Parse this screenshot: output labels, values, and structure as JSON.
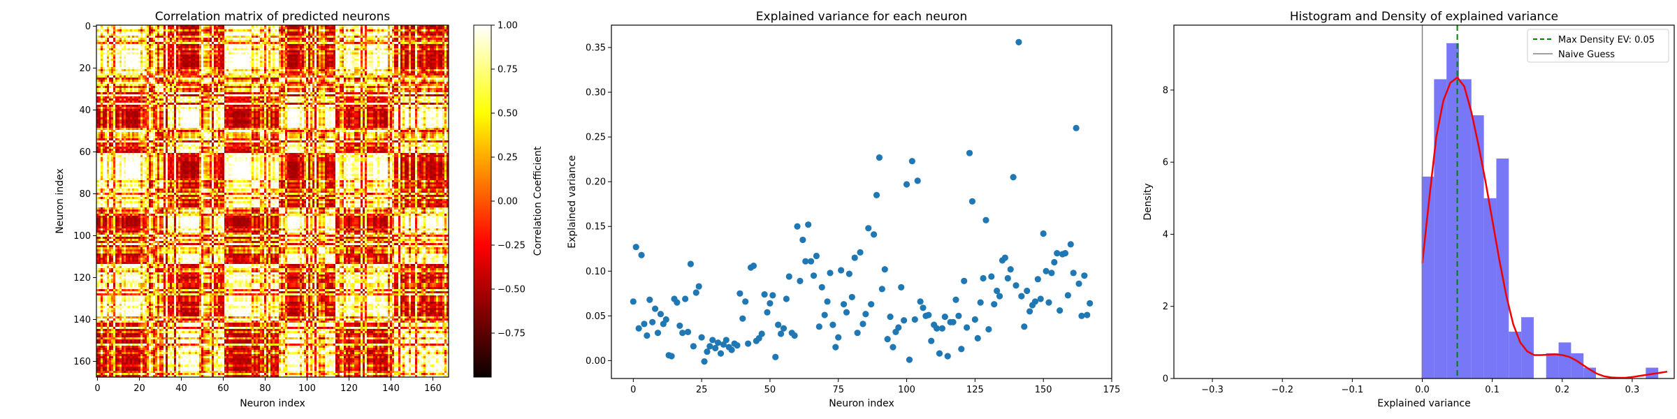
{
  "chart_data": [
    {
      "type": "heatmap",
      "title": "Correlation matrix of predicted neurons",
      "xlabel": "Neuron index",
      "ylabel": "Neuron index",
      "size": 168,
      "xticks": [
        0,
        20,
        40,
        60,
        80,
        100,
        120,
        140,
        160
      ],
      "yticks": [
        0,
        20,
        40,
        60,
        80,
        100,
        120,
        140,
        160
      ],
      "colormap": "hot",
      "colorbar": {
        "label": "Correlation Coefficient",
        "min": -1.0,
        "max": 1.0,
        "ticks": [
          1.0,
          0.75,
          0.5,
          0.25,
          0.0,
          -0.25,
          -0.5,
          -0.75
        ],
        "tick_labels": [
          "1.00",
          "0.75",
          "0.50",
          "0.25",
          "0.00",
          "−0.25",
          "−0.50",
          "−0.75"
        ]
      }
    },
    {
      "type": "scatter",
      "title": "Explained variance for each neuron",
      "xlabel": "Neuron index",
      "ylabel": "Explained variance",
      "xlim": [
        -8,
        175
      ],
      "ylim": [
        -0.02,
        0.375
      ],
      "xticks": [
        0,
        25,
        50,
        75,
        100,
        125,
        150,
        175
      ],
      "yticks": [
        0.0,
        0.05,
        0.1,
        0.15,
        0.2,
        0.25,
        0.3,
        0.35
      ],
      "ytick_labels": [
        "0.00",
        "0.05",
        "0.10",
        "0.15",
        "0.20",
        "0.25",
        "0.30",
        "0.35"
      ],
      "color": "#1f77b4",
      "points": [
        [
          0,
          0.066
        ],
        [
          1,
          0.127
        ],
        [
          2,
          0.036
        ],
        [
          3,
          0.118
        ],
        [
          4,
          0.041
        ],
        [
          5,
          0.028
        ],
        [
          6,
          0.068
        ],
        [
          7,
          0.043
        ],
        [
          8,
          0.058
        ],
        [
          9,
          0.031
        ],
        [
          10,
          0.052
        ],
        [
          11,
          0.041
        ],
        [
          12,
          0.046
        ],
        [
          13,
          0.006
        ],
        [
          14,
          0.005
        ],
        [
          15,
          0.069
        ],
        [
          16,
          0.065
        ],
        [
          17,
          0.039
        ],
        [
          18,
          0.031
        ],
        [
          19,
          0.069
        ],
        [
          20,
          0.032
        ],
        [
          21,
          0.108
        ],
        [
          22,
          0.016
        ],
        [
          23,
          0.076
        ],
        [
          24,
          0.083
        ],
        [
          25,
          0.026
        ],
        [
          26,
          -0.001
        ],
        [
          27,
          0.01
        ],
        [
          28,
          0.016
        ],
        [
          29,
          0.023
        ],
        [
          30,
          0.014
        ],
        [
          31,
          0.02
        ],
        [
          32,
          0.008
        ],
        [
          33,
          0.018
        ],
        [
          34,
          0.023
        ],
        [
          35,
          0.015
        ],
        [
          36,
          0.012
        ],
        [
          37,
          0.019
        ],
        [
          38,
          0.017
        ],
        [
          39,
          0.075
        ],
        [
          40,
          0.047
        ],
        [
          41,
          0.066
        ],
        [
          42,
          0.019
        ],
        [
          43,
          0.104
        ],
        [
          44,
          0.106
        ],
        [
          45,
          0.022
        ],
        [
          46,
          0.025
        ],
        [
          47,
          0.03
        ],
        [
          48,
          0.074
        ],
        [
          49,
          0.054
        ],
        [
          50,
          0.064
        ],
        [
          51,
          0.073
        ],
        [
          52,
          0.004
        ],
        [
          53,
          0.04
        ],
        [
          54,
          0.03
        ],
        [
          55,
          0.036
        ],
        [
          56,
          0.069
        ],
        [
          57,
          0.094
        ],
        [
          58,
          0.031
        ],
        [
          59,
          0.028
        ],
        [
          60,
          0.15
        ],
        [
          61,
          0.089
        ],
        [
          62,
          0.135
        ],
        [
          63,
          0.111
        ],
        [
          64,
          0.152
        ],
        [
          65,
          0.111
        ],
        [
          66,
          0.095
        ],
        [
          67,
          0.117
        ],
        [
          68,
          0.038
        ],
        [
          69,
          0.082
        ],
        [
          70,
          0.051
        ],
        [
          71,
          0.066
        ],
        [
          72,
          0.098
        ],
        [
          73,
          0.04
        ],
        [
          74,
          0.015
        ],
        [
          75,
          0.026
        ],
        [
          76,
          0.101
        ],
        [
          77,
          0.063
        ],
        [
          78,
          0.054
        ],
        [
          79,
          0.097
        ],
        [
          80,
          0.071
        ],
        [
          81,
          0.115
        ],
        [
          82,
          0.031
        ],
        [
          83,
          0.121
        ],
        [
          84,
          0.041
        ],
        [
          85,
          0.052
        ],
        [
          86,
          0.148
        ],
        [
          87,
          0.063
        ],
        [
          88,
          0.141
        ],
        [
          89,
          0.185
        ],
        [
          90,
          0.227
        ],
        [
          91,
          0.08
        ],
        [
          92,
          0.102
        ],
        [
          93,
          0.024
        ],
        [
          94,
          0.049
        ],
        [
          95,
          0.015
        ],
        [
          96,
          0.032
        ],
        [
          97,
          0.037
        ],
        [
          98,
          0.082
        ],
        [
          99,
          0.045
        ],
        [
          100,
          0.197
        ],
        [
          101,
          0.001
        ],
        [
          102,
          0.223
        ],
        [
          103,
          0.046
        ],
        [
          104,
          0.201
        ],
        [
          105,
          0.066
        ],
        [
          106,
          0.059
        ],
        [
          107,
          0.05
        ],
        [
          108,
          0.051
        ],
        [
          109,
          0.022
        ],
        [
          110,
          0.04
        ],
        [
          111,
          0.036
        ],
        [
          112,
          0.008
        ],
        [
          113,
          0.036
        ],
        [
          114,
          0.049
        ],
        [
          115,
          0.005
        ],
        [
          116,
          0.043
        ],
        [
          117,
          0.043
        ],
        [
          118,
          0.068
        ],
        [
          119,
          0.05
        ],
        [
          120,
          0.013
        ],
        [
          121,
          0.089
        ],
        [
          122,
          0.037
        ],
        [
          123,
          0.232
        ],
        [
          124,
          0.178
        ],
        [
          125,
          0.046
        ],
        [
          126,
          0.025
        ],
        [
          127,
          0.065
        ],
        [
          128,
          0.092
        ],
        [
          129,
          0.157
        ],
        [
          130,
          0.035
        ],
        [
          131,
          0.094
        ],
        [
          132,
          0.063
        ],
        [
          133,
          0.078
        ],
        [
          134,
          0.072
        ],
        [
          135,
          0.112
        ],
        [
          136,
          0.115
        ],
        [
          137,
          0.092
        ],
        [
          138,
          0.102
        ],
        [
          139,
          0.205
        ],
        [
          140,
          0.084
        ],
        [
          141,
          0.356
        ],
        [
          142,
          0.072
        ],
        [
          143,
          0.038
        ],
        [
          144,
          0.078
        ],
        [
          145,
          0.055
        ],
        [
          146,
          0.062
        ],
        [
          147,
          0.066
        ],
        [
          148,
          0.091
        ],
        [
          149,
          0.069
        ],
        [
          150,
          0.142
        ],
        [
          151,
          0.1
        ],
        [
          152,
          0.065
        ],
        [
          153,
          0.098
        ],
        [
          154,
          0.11
        ],
        [
          155,
          0.12
        ],
        [
          156,
          0.056
        ],
        [
          157,
          0.119
        ],
        [
          158,
          0.12
        ],
        [
          159,
          0.073
        ],
        [
          160,
          0.13
        ],
        [
          161,
          0.098
        ],
        [
          162,
          0.26
        ],
        [
          163,
          0.086
        ],
        [
          164,
          0.05
        ],
        [
          165,
          0.095
        ],
        [
          166,
          0.051
        ],
        [
          167,
          0.064
        ]
      ]
    },
    {
      "type": "bar",
      "title": "Histogram and Density of explained variance",
      "xlabel": "Explained variance",
      "ylabel": "Density",
      "xlim": [
        -0.355,
        0.36
      ],
      "ylim": [
        0,
        9.8
      ],
      "xticks": [
        -0.3,
        -0.2,
        -0.1,
        0.0,
        0.1,
        0.2,
        0.3
      ],
      "xtick_labels": [
        "−0.3",
        "−0.2",
        "−0.1",
        "0.0",
        "0.1",
        "0.2",
        "0.3"
      ],
      "yticks": [
        0,
        2,
        4,
        6,
        8
      ],
      "bin_width": 0.0178,
      "bin_start": -0.001,
      "bin_values": [
        5.6,
        8.3,
        9.3,
        8.3,
        7.3,
        5.0,
        6.1,
        1.3,
        1.7,
        0.0,
        0.7,
        1.0,
        0.7,
        0.3,
        0.0,
        0.0,
        0.0,
        0.0,
        0.3
      ],
      "bar_color": "#7777f7",
      "density": {
        "color": "#ee0000",
        "x": [
          0.0,
          0.01,
          0.02,
          0.03,
          0.04,
          0.05,
          0.06,
          0.07,
          0.08,
          0.09,
          0.1,
          0.11,
          0.12,
          0.13,
          0.14,
          0.15,
          0.16,
          0.17,
          0.18,
          0.19,
          0.2,
          0.21,
          0.22,
          0.23,
          0.24,
          0.25,
          0.26,
          0.27,
          0.28,
          0.29,
          0.3,
          0.31,
          0.32,
          0.33,
          0.34,
          0.35
        ],
        "y": [
          3.2,
          5.0,
          6.7,
          7.7,
          8.2,
          8.35,
          8.1,
          7.4,
          6.5,
          5.5,
          4.4,
          3.3,
          2.3,
          1.5,
          1.0,
          0.75,
          0.65,
          0.65,
          0.66,
          0.67,
          0.65,
          0.6,
          0.5,
          0.37,
          0.24,
          0.13,
          0.06,
          0.03,
          0.02,
          0.02,
          0.04,
          0.07,
          0.1,
          0.13,
          0.16,
          0.19
        ]
      },
      "max_density_line": {
        "x": 0.05,
        "label": "Max Density EV: 0.05",
        "color": "#008000"
      },
      "naive_line": {
        "x": 0.0,
        "label": "Naive Guess",
        "color": "#808080"
      },
      "legend_placement": "top-right"
    }
  ]
}
